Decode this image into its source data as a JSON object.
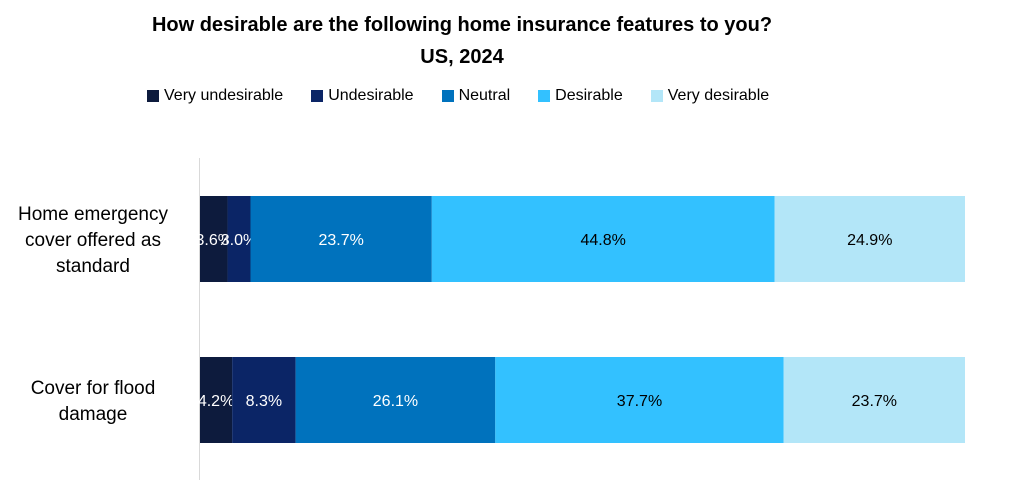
{
  "chart_data": {
    "type": "bar",
    "orientation": "horizontal",
    "stacked": true,
    "title": "How desirable are the following home insurance features to you?",
    "subtitle": "US, 2024",
    "categories": [
      "Home emergency cover offered as standard",
      "Cover for flood damage"
    ],
    "category_lines": [
      [
        "Home emergency",
        "cover offered as",
        "standard"
      ],
      [
        "Cover for flood",
        "damage"
      ]
    ],
    "series": [
      {
        "name": "Very undesirable",
        "color": "#0d1b3d",
        "values": [
          3.6,
          4.2
        ],
        "labels": [
          "3.6%",
          "4.2%"
        ],
        "label_color": "#ffffff"
      },
      {
        "name": "Undesirable",
        "color": "#0b2566",
        "values": [
          3.0,
          8.3
        ],
        "labels": [
          "3.0%",
          "8.3%"
        ],
        "label_color": "#ffffff"
      },
      {
        "name": "Neutral",
        "color": "#0072bd",
        "values": [
          23.7,
          26.1
        ],
        "labels": [
          "23.7%",
          "26.1%"
        ],
        "label_color": "#ffffff"
      },
      {
        "name": "Desirable",
        "color": "#33c1ff",
        "values": [
          44.8,
          37.7
        ],
        "labels": [
          "44.8%",
          "37.7%"
        ],
        "label_color": "#000000"
      },
      {
        "name": "Very desirable",
        "color": "#b3e6f8",
        "values": [
          24.9,
          23.7
        ],
        "labels": [
          "24.9%",
          "23.7%"
        ],
        "label_color": "#000000"
      }
    ],
    "xlim": [
      0,
      100
    ],
    "legend_position": "top",
    "grid": false
  }
}
